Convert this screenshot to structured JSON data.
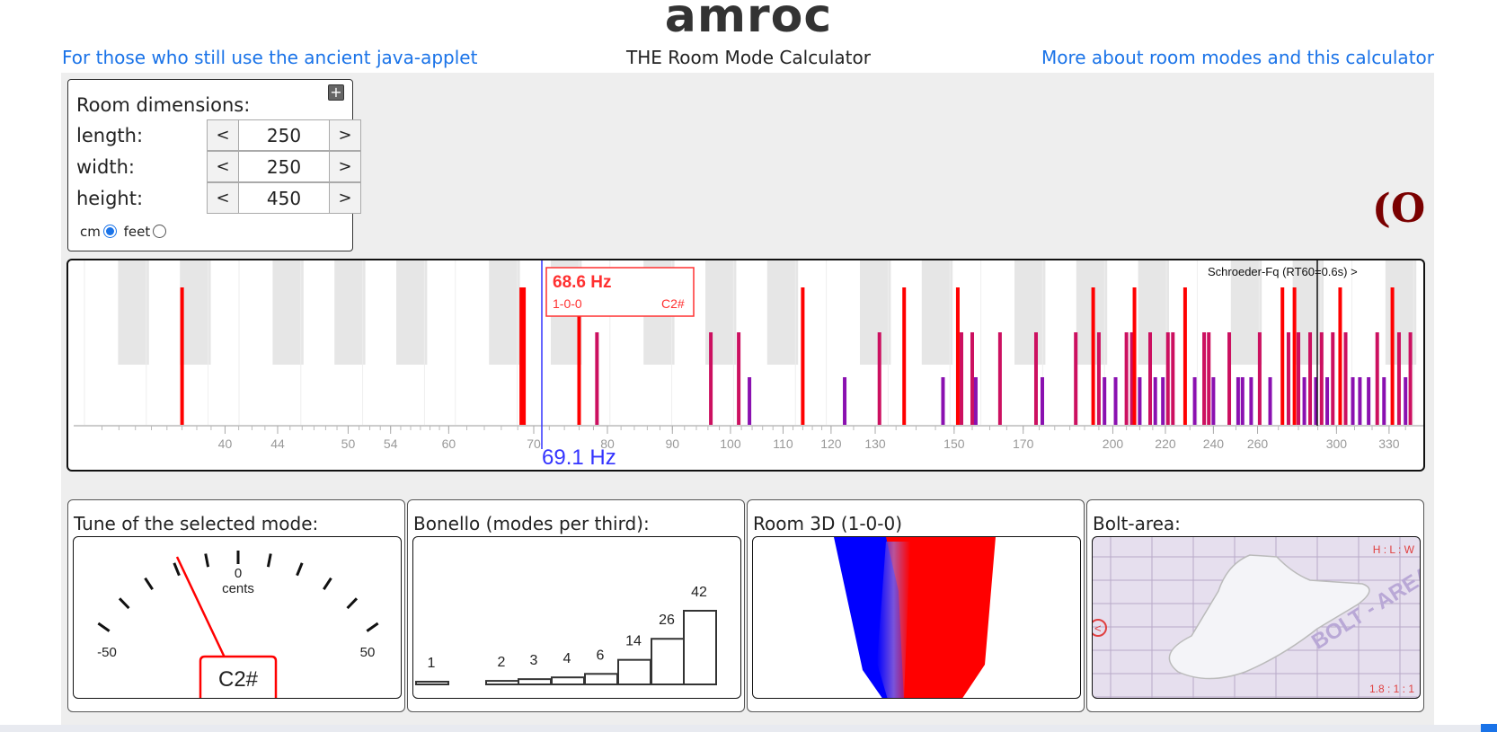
{
  "header": {
    "title": "amroc",
    "subtitle": "THE Room Mode Calculator",
    "left_link": "For those who still use the ancient java-applet",
    "right_link": "More about room modes and this calculator"
  },
  "dimensions": {
    "heading": "Room dimensions:",
    "plus": "+",
    "dec": "<",
    "inc": ">",
    "rows": [
      {
        "label": "length:",
        "value": "250"
      },
      {
        "label": "width:",
        "value": "250"
      },
      {
        "label": "height:",
        "value": "450"
      }
    ],
    "unit_cm": "cm",
    "unit_feet": "feet",
    "selected_unit": "cm"
  },
  "logo_text": "(O",
  "spectrum": {
    "tooltip_freq": "68.6 Hz",
    "tooltip_mode": "1-0-0",
    "tooltip_note": "C2#",
    "cursor_label": "69.1 Hz",
    "schroeder_label": "Schroeder-Fq (RT60=0.6s) >",
    "ticks": [
      "40",
      "44",
      "50",
      "54",
      "60",
      "70",
      "80",
      "90",
      "100",
      "110",
      "120",
      "130",
      "150",
      "170",
      "200",
      "220",
      "240",
      "260",
      "300",
      "330"
    ],
    "colors": {
      "axial": "#ff0000",
      "tangential": "#cc1060",
      "oblique": "#8a10b0",
      "cursor": "#3333ff"
    }
  },
  "tuner": {
    "title": "Tune of the selected mode:",
    "zero": "0",
    "cents": "cents",
    "min": "-50",
    "max": "50",
    "note": "C2#"
  },
  "bonello": {
    "title": "Bonello (modes per third):",
    "values": [
      "1",
      "2",
      "3",
      "4",
      "6",
      "14",
      "26",
      "42"
    ]
  },
  "room3d": {
    "title": "Room 3D (1-0-0)"
  },
  "bolt": {
    "title": "Bolt-area:",
    "ratio_top": "H : L : W",
    "ratio_bottom": "1.8 : 1 : 1",
    "watermark": "BOLT - AREA",
    "left_icon": "<"
  }
}
